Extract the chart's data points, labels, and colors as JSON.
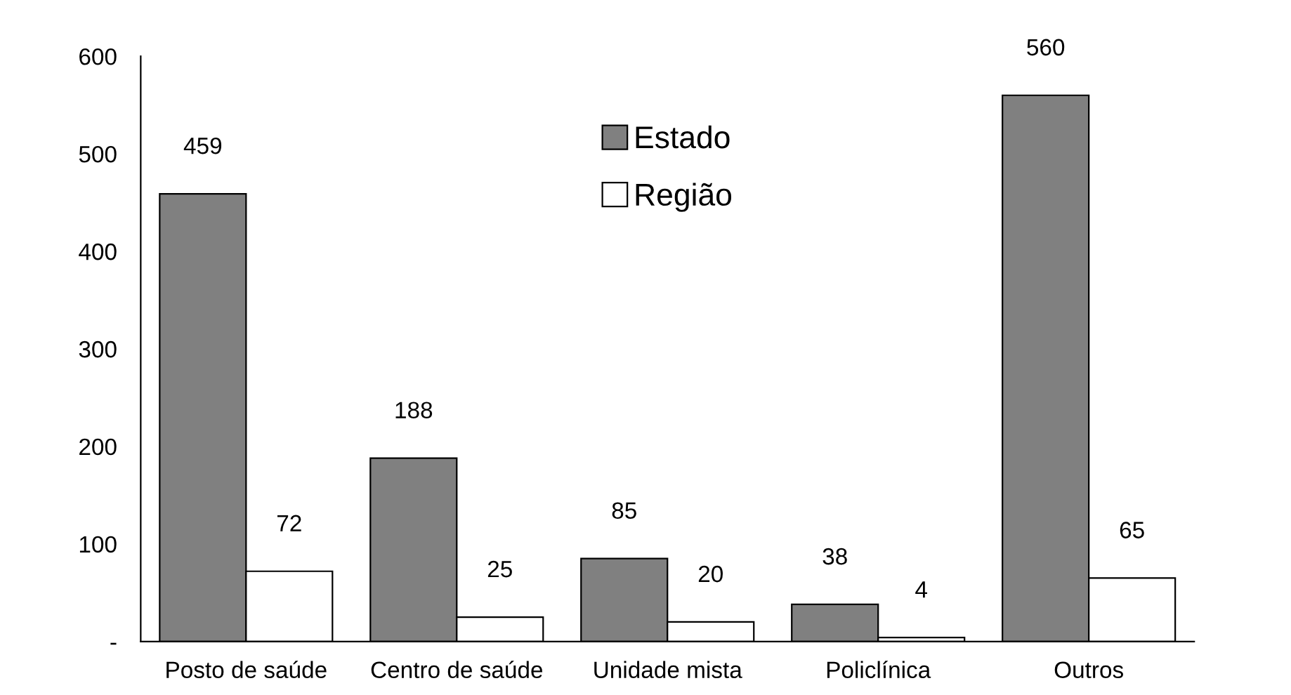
{
  "chart_data": {
    "type": "bar",
    "categories": [
      "Posto de saúde",
      "Centro de saúde",
      "Unidade mista",
      "Policlínica",
      "Outros"
    ],
    "series": [
      {
        "name": "Estado",
        "color": "#808080",
        "values": [
          459,
          188,
          85,
          38,
          560
        ]
      },
      {
        "name": "Região",
        "color": "#ffffff",
        "values": [
          72,
          25,
          20,
          4,
          65
        ]
      }
    ],
    "ylim": [
      0,
      600
    ],
    "yticks": [
      {
        "value": 0,
        "label": "-"
      },
      100,
      200,
      300,
      400,
      500,
      600
    ],
    "data_labels": true,
    "legend": "top",
    "grid": false
  }
}
